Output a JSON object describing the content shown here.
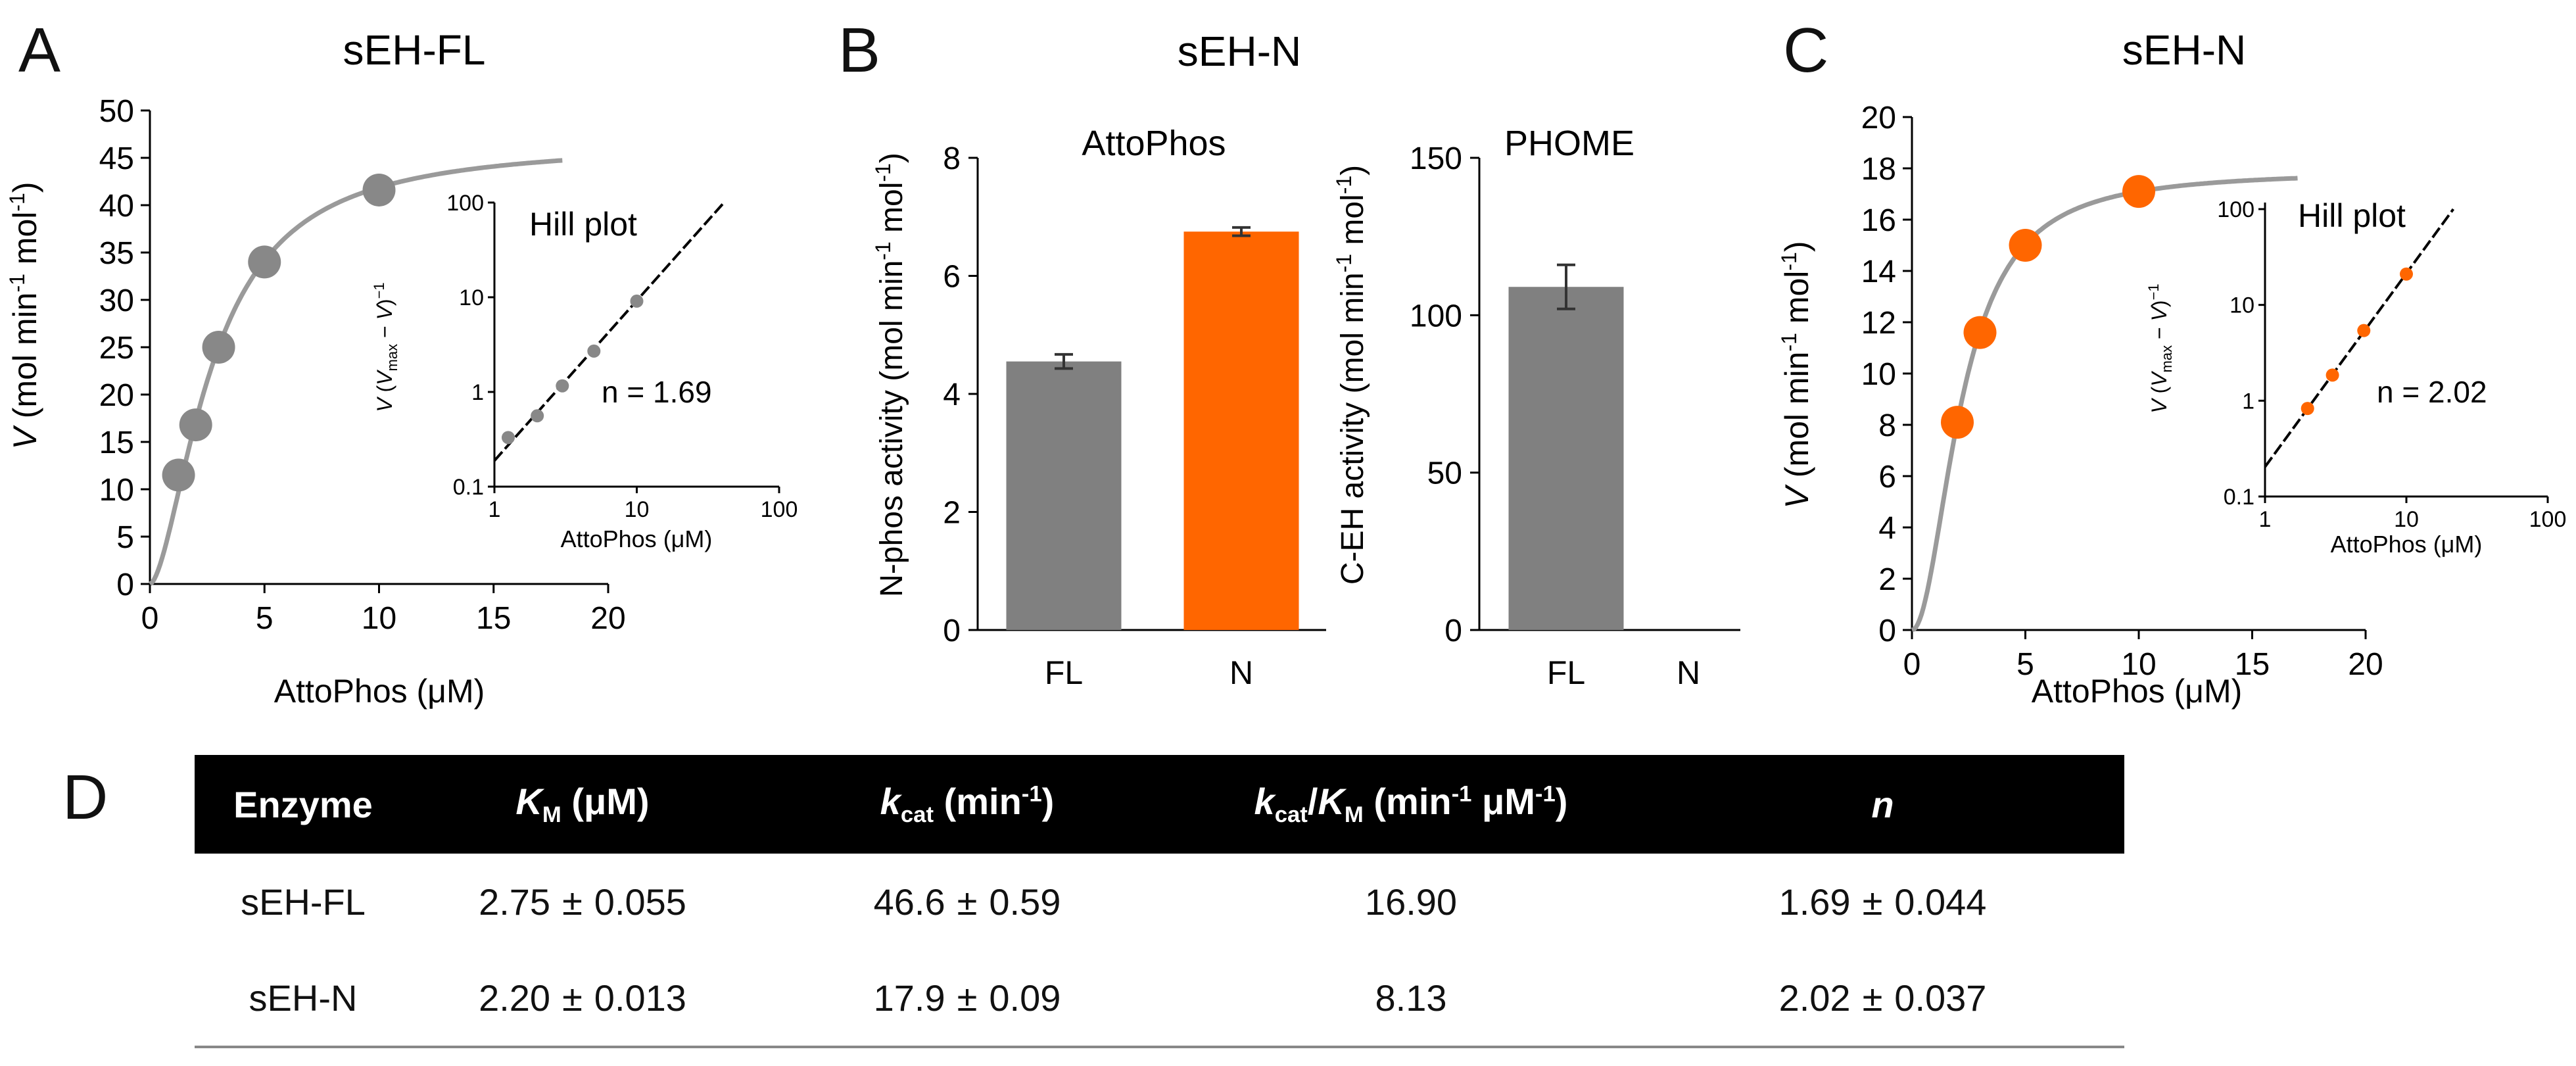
{
  "panels": {
    "a": "A",
    "b": "B",
    "c": "C",
    "d": "D"
  },
  "chart_data": [
    {
      "id": "A",
      "type": "scatter",
      "title": "sEH-FL",
      "xlabel": "AttoPhos (μM)",
      "ylabel_parts": {
        "var": "V",
        "unit": " (mol min",
        "exp1": "-1",
        "mid": " mol",
        "exp2": "-1",
        "end": ")"
      },
      "xlim": [
        0,
        20
      ],
      "ylim": [
        0,
        50
      ],
      "xticks": [
        "0",
        "5",
        "10",
        "15",
        "20"
      ],
      "yticks": [
        "0",
        "5",
        "10",
        "15",
        "20",
        "25",
        "30",
        "35",
        "40",
        "45",
        "50"
      ],
      "x": [
        1.25,
        2,
        3,
        5,
        10
      ],
      "y": [
        11.5,
        16.8,
        25,
        34,
        41.6
      ],
      "fit": {
        "model": "hill",
        "vmax": 46.6,
        "km": 2.75,
        "n": 1.69,
        "xmax": 18
      },
      "color": "#888888",
      "inset": {
        "title": "Hill plot",
        "xlabel": "AttoPhos (μM)",
        "ylabel": "V (Vmax − V)⁻¹",
        "xticks": [
          "1",
          "10",
          "100"
        ],
        "yticks": [
          "0.1",
          "1",
          "10",
          "100"
        ],
        "annotation": "n = 1.69",
        "x": [
          1.25,
          2,
          3,
          5,
          10
        ],
        "y": [
          0.33,
          0.56,
          1.16,
          2.7,
          9.1
        ],
        "color": "#888888"
      }
    },
    {
      "id": "B1",
      "type": "bar",
      "panel_title": "sEH-N",
      "title": "AttoPhos",
      "ylabel": "N-phos activity (mol min-1 mol-1)",
      "categories": [
        "FL",
        "N"
      ],
      "values": [
        4.55,
        6.75
      ],
      "errors": [
        0.12,
        0.07
      ],
      "colors": [
        "#808080",
        "#FF6600"
      ],
      "ylim": [
        0,
        8
      ],
      "yticks": [
        "0",
        "2",
        "4",
        "6",
        "8"
      ]
    },
    {
      "id": "B2",
      "type": "bar",
      "title": "PHOME",
      "ylabel": "C-EH activity (mol min-1 mol-1)",
      "categories": [
        "FL",
        "N"
      ],
      "values": [
        109,
        0
      ],
      "errors": [
        7,
        0
      ],
      "colors": [
        "#808080",
        "#808080"
      ],
      "ylim": [
        0,
        150
      ],
      "yticks": [
        "0",
        "50",
        "100",
        "150"
      ]
    },
    {
      "id": "C",
      "type": "scatter",
      "title": "sEH-N",
      "xlabel": "AttoPhos (μM)",
      "ylabel_parts": {
        "var": "V",
        "unit": " (mol min",
        "exp1": "-1",
        "mid": " mol",
        "exp2": "-1",
        "end": ")"
      },
      "xlim": [
        0,
        20
      ],
      "ylim": [
        0,
        20
      ],
      "xticks": [
        "0",
        "5",
        "10",
        "15",
        "20"
      ],
      "yticks": [
        "0",
        "2",
        "4",
        "6",
        "8",
        "10",
        "12",
        "14",
        "16",
        "18",
        "20"
      ],
      "x": [
        2,
        3,
        5,
        10
      ],
      "y": [
        8.1,
        11.6,
        15,
        17.1
      ],
      "fit": {
        "model": "hill",
        "vmax": 17.9,
        "km": 2.2,
        "n": 2.02,
        "xmax": 17
      },
      "color": "#FF6600",
      "inset": {
        "title": "Hill plot",
        "xlabel": "AttoPhos (μM)",
        "ylabel": "V (Vmax − V)⁻¹",
        "xticks": [
          "1",
          "10",
          "100"
        ],
        "yticks": [
          "0.1",
          "1",
          "10",
          "100"
        ],
        "annotation": "n = 2.02",
        "x": [
          2,
          3,
          5,
          10
        ],
        "y": [
          0.83,
          1.85,
          5.4,
          21
        ],
        "color": "#FF6600"
      }
    }
  ],
  "table": {
    "headers": [
      {
        "main": "Enzyme"
      },
      {
        "sym": "K",
        "sub": "M",
        "rest": " (μM)"
      },
      {
        "sym": "k",
        "sub": "cat",
        "rest": " (min",
        "sup": "-1",
        "end": ")"
      },
      {
        "sym": "k",
        "sub": "cat",
        "slash": "/",
        "sym2": "K",
        "sub2": "M",
        "rest": " (min",
        "sup": "-1",
        "mid": " μM",
        "sup2": "-1",
        "end": ")"
      },
      {
        "sym": "n"
      }
    ],
    "pm": "±",
    "rows": [
      {
        "enzyme": "sEH-FL",
        "km": "2.75",
        "km_err": "0.055",
        "kcat": "46.6",
        "kcat_err": "0.59",
        "ratio": "16.90",
        "n": "1.69",
        "n_err": "0.044"
      },
      {
        "enzyme": "sEH-N",
        "km": "2.20",
        "km_err": "0.013",
        "kcat": "17.9",
        "kcat_err": "0.09",
        "ratio": "8.13",
        "n": "2.02",
        "n_err": "0.037"
      }
    ]
  }
}
